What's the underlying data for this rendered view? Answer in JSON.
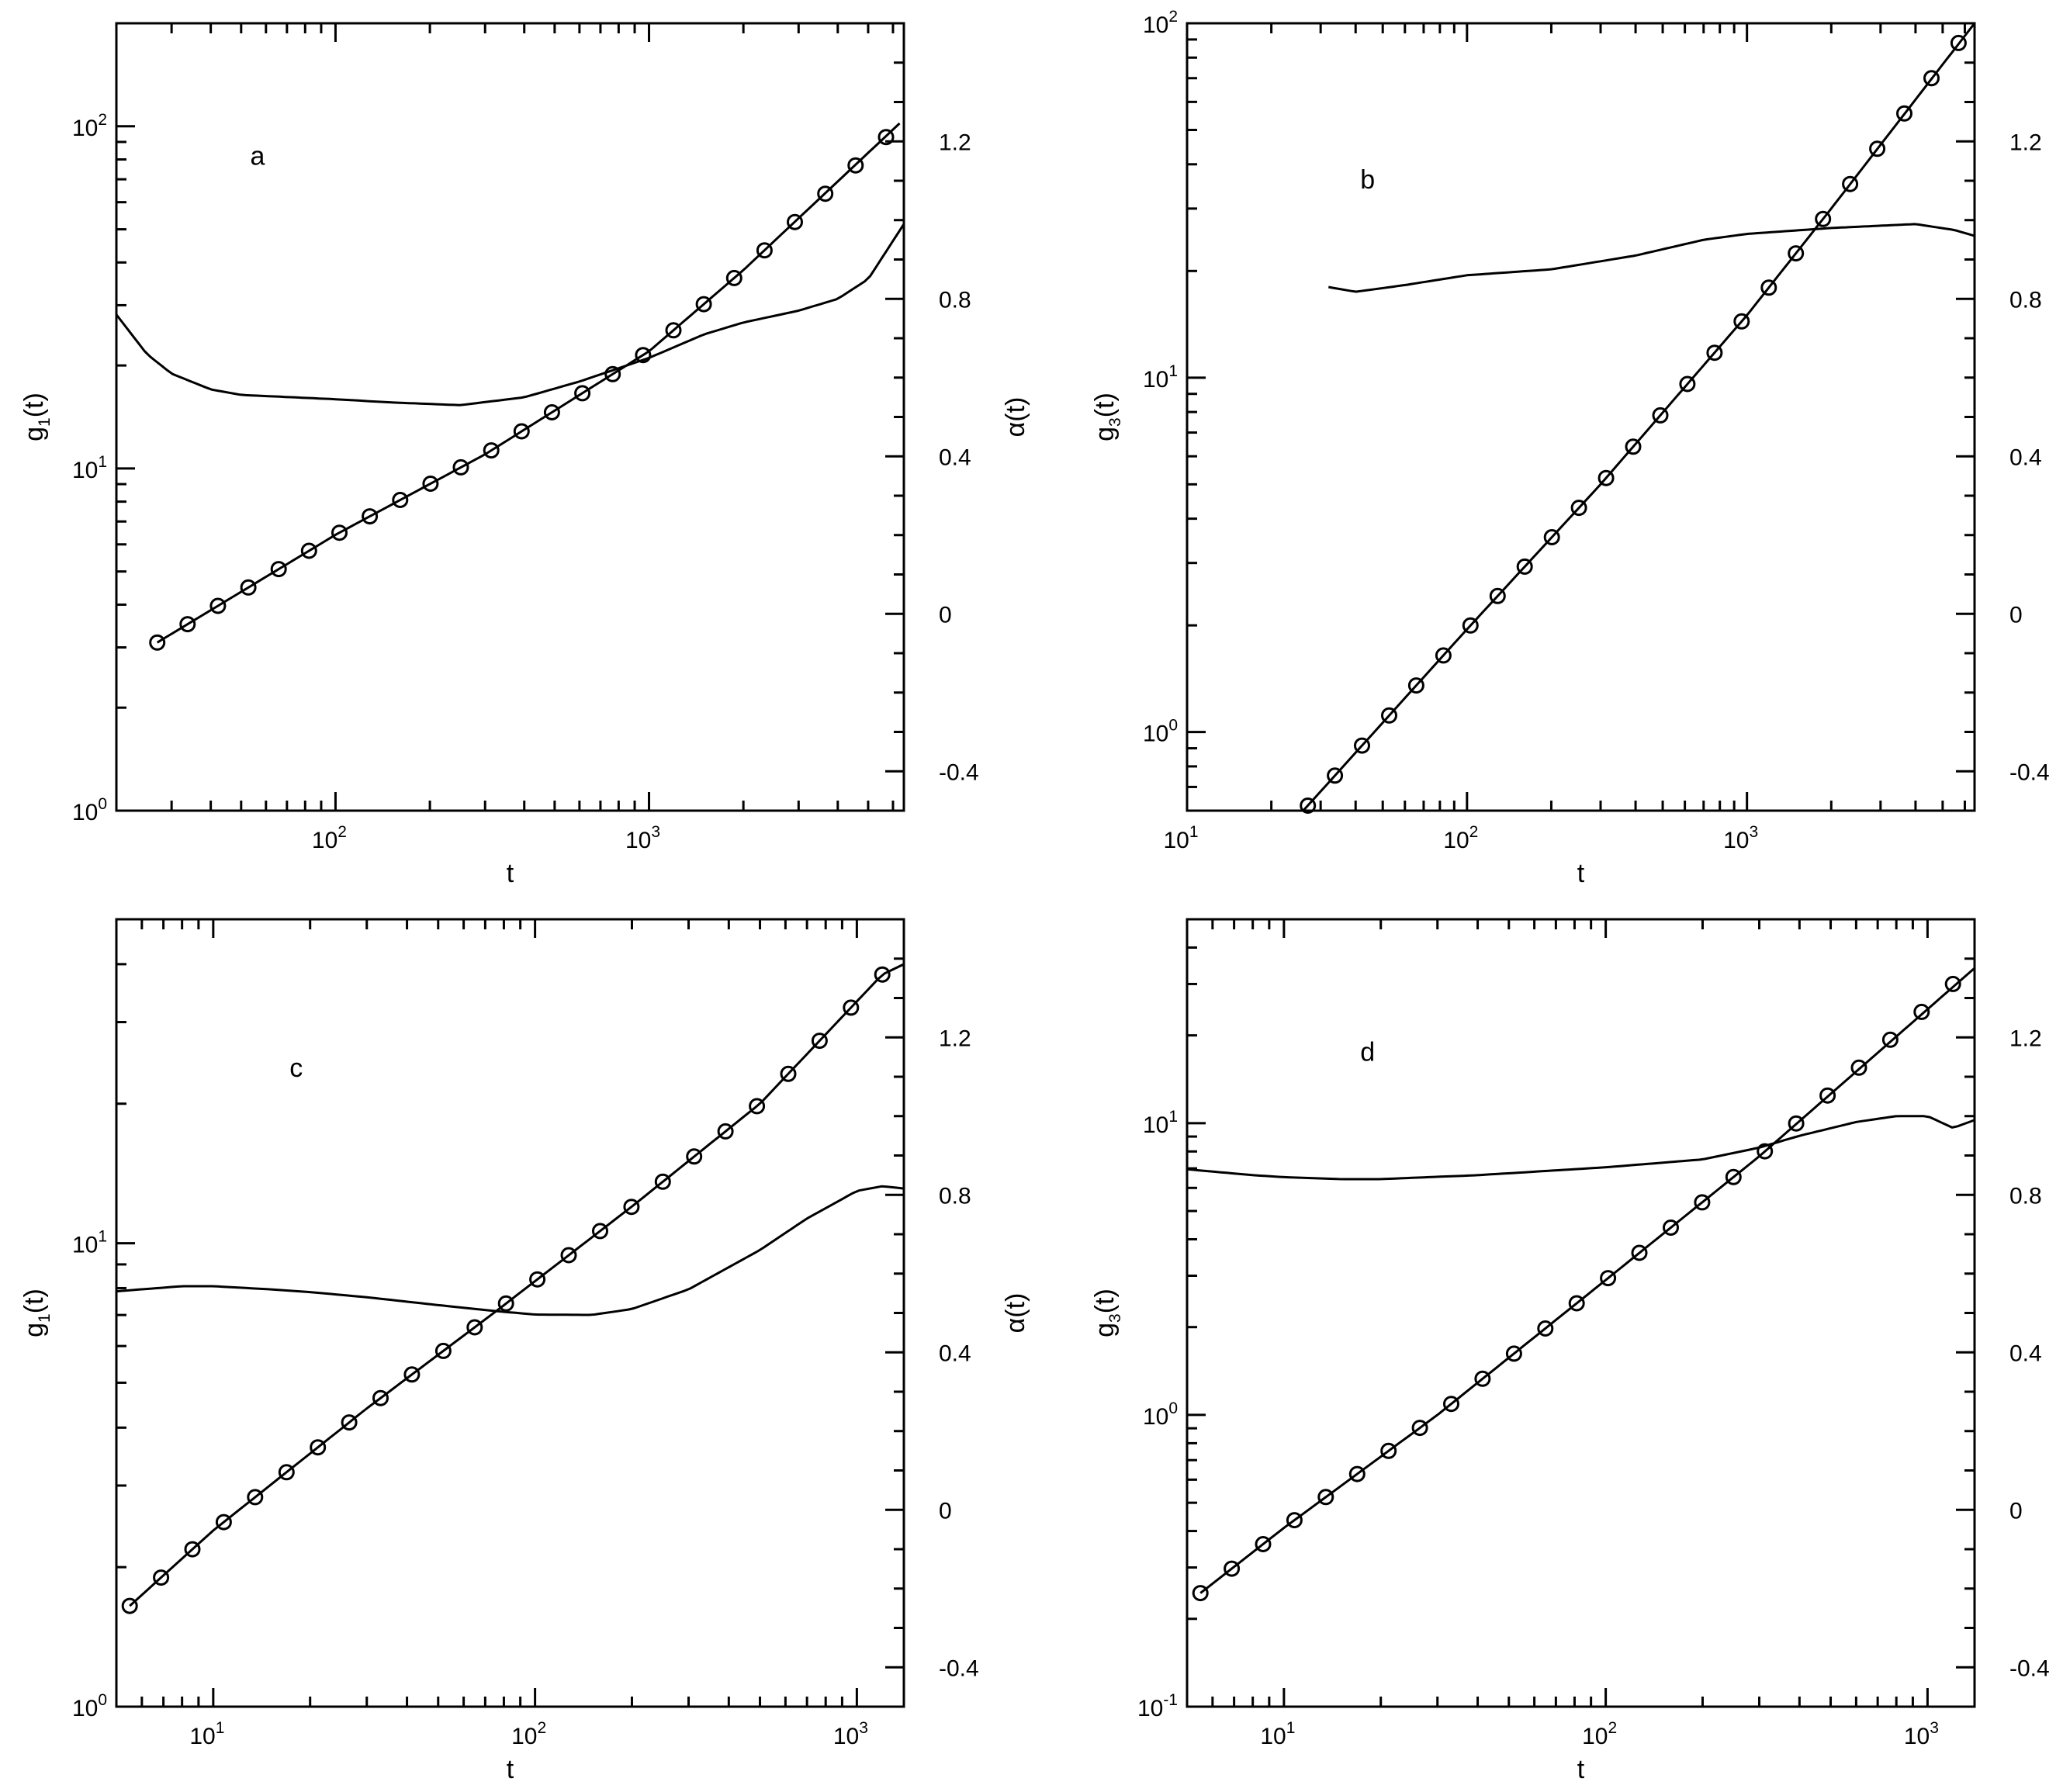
{
  "chart_data": [
    {
      "type": "line",
      "panel_label": "a",
      "xlabel": "t",
      "ylabel_left": {
        "base": "g",
        "sub": "1",
        "rest": "(t)"
      },
      "ylabel_right": "α(t)",
      "x_scale": "log",
      "y_left_scale": "log",
      "xlim": [
        20,
        6500
      ],
      "ylim_left": [
        1,
        200
      ],
      "ylim_right": [
        -0.5,
        1.5
      ],
      "x_ticks": [
        {
          "base": "10",
          "exp": "2",
          "value": 100
        },
        {
          "base": "10",
          "exp": "3",
          "value": 1000
        }
      ],
      "y_left_ticks": [
        {
          "base": "10",
          "exp": "0",
          "value": 1
        },
        {
          "base": "10",
          "exp": "1",
          "value": 10
        },
        {
          "base": "10",
          "exp": "2",
          "value": 100
        }
      ],
      "y_right_ticks": [
        "-0.4",
        "0",
        "0.4",
        "0.8",
        "1.2"
      ],
      "grid": false,
      "series": [
        {
          "role": "g(t) data",
          "axis": "left",
          "style": "markers",
          "x_start": 27,
          "x_end": 5700,
          "y_points": [
            [
              27,
              3.1
            ],
            [
              100,
              6.4
            ],
            [
              300,
              11
            ],
            [
              1000,
              22
            ],
            [
              2000,
              38
            ],
            [
              5700,
              93
            ]
          ]
        },
        {
          "role": "g(t) fit",
          "axis": "left",
          "style": "line",
          "x_start": 27,
          "x_end": 6300,
          "y_points": [
            [
              27,
              3.1
            ],
            [
              100,
              6.4
            ],
            [
              300,
              11
            ],
            [
              1000,
              22
            ],
            [
              2000,
              38
            ],
            [
              6300,
              102
            ]
          ]
        },
        {
          "role": "alpha(t)",
          "axis": "right",
          "style": "line",
          "points": [
            [
              20,
              0.76
            ],
            [
              25,
              0.66
            ],
            [
              30,
              0.61
            ],
            [
              40,
              0.57
            ],
            [
              50,
              0.556
            ],
            [
              100,
              0.545
            ],
            [
              150,
              0.537
            ],
            [
              250,
              0.53
            ],
            [
              400,
              0.55
            ],
            [
              600,
              0.59
            ],
            [
              1000,
              0.65
            ],
            [
              1500,
              0.71
            ],
            [
              2000,
              0.74
            ],
            [
              3000,
              0.77
            ],
            [
              4000,
              0.8
            ],
            [
              5000,
              0.85
            ],
            [
              6500,
              0.99
            ]
          ]
        }
      ]
    },
    {
      "type": "line",
      "panel_label": "b",
      "xlabel": "t",
      "ylabel_left": {
        "base": "g",
        "sub": "3",
        "rest": "(t)"
      },
      "ylabel_right": "α(t)",
      "x_scale": "log",
      "y_left_scale": "log",
      "xlim": [
        10,
        6500
      ],
      "ylim_left": [
        0.6,
        100
      ],
      "ylim_right": [
        -0.5,
        1.5
      ],
      "x_ticks": [
        {
          "base": "10",
          "exp": "1",
          "value": 10
        },
        {
          "base": "10",
          "exp": "2",
          "value": 100
        },
        {
          "base": "10",
          "exp": "3",
          "value": 1000
        }
      ],
      "y_left_ticks": [
        {
          "base": "10",
          "exp": "0",
          "value": 1
        },
        {
          "base": "10",
          "exp": "1",
          "value": 10
        },
        {
          "base": "10",
          "exp": "2",
          "value": 100
        }
      ],
      "y_right_ticks": [
        "-0.4",
        "0",
        "0.4",
        "0.8",
        "1.2"
      ],
      "grid": false,
      "series": [
        {
          "role": "g(t) data",
          "axis": "left",
          "style": "markers",
          "x_start": 27,
          "x_end": 5700,
          "y_points": [
            [
              27,
              0.62
            ],
            [
              100,
              1.95
            ],
            [
              300,
              5.0
            ],
            [
              1000,
              15
            ],
            [
              2000,
              30
            ],
            [
              5700,
              88
            ]
          ]
        },
        {
          "role": "g(t) fit",
          "axis": "left",
          "style": "line",
          "x_start": 26,
          "x_end": 6500,
          "y_points": [
            [
              26,
              0.6
            ],
            [
              100,
              1.95
            ],
            [
              300,
              5.0
            ],
            [
              1000,
              15
            ],
            [
              2000,
              30
            ],
            [
              6500,
              100
            ]
          ]
        },
        {
          "role": "alpha(t)",
          "axis": "right",
          "style": "line",
          "points": [
            [
              32,
              0.83
            ],
            [
              40,
              0.818
            ],
            [
              60,
              0.835
            ],
            [
              100,
              0.86
            ],
            [
              200,
              0.875
            ],
            [
              400,
              0.91
            ],
            [
              700,
              0.95
            ],
            [
              1000,
              0.965
            ],
            [
              2000,
              0.98
            ],
            [
              4000,
              0.99
            ],
            [
              5500,
              0.975
            ],
            [
              6500,
              0.96
            ]
          ]
        }
      ]
    },
    {
      "type": "line",
      "panel_label": "c",
      "xlabel": "t",
      "ylabel_left": {
        "base": "g",
        "sub": "1",
        "rest": "(t)"
      },
      "ylabel_right": "α(t)",
      "x_scale": "log",
      "y_left_scale": "log",
      "xlim": [
        5,
        1400
      ],
      "ylim_left": [
        1,
        50
      ],
      "ylim_right": [
        -0.5,
        1.5
      ],
      "x_ticks": [
        {
          "base": "10",
          "exp": "1",
          "value": 10
        },
        {
          "base": "10",
          "exp": "2",
          "value": 100
        },
        {
          "base": "10",
          "exp": "3",
          "value": 1000
        }
      ],
      "y_left_ticks": [
        {
          "base": "10",
          "exp": "0",
          "value": 1
        },
        {
          "base": "10",
          "exp": "1",
          "value": 10
        }
      ],
      "y_right_ticks": [
        "-0.4",
        "0",
        "0.4",
        "0.8",
        "1.2"
      ],
      "grid": false,
      "series": [
        {
          "role": "g(t) data",
          "axis": "left",
          "style": "markers",
          "x_start": 5.5,
          "x_end": 1200,
          "y_points": [
            [
              5.5,
              1.65
            ],
            [
              10,
              2.4
            ],
            [
              30,
              4.4
            ],
            [
              75,
              7.1
            ],
            [
              200,
              12
            ],
            [
              500,
              20
            ],
            [
              1200,
              38
            ]
          ]
        },
        {
          "role": "g(t) fit",
          "axis": "left",
          "style": "line",
          "x_start": 5.5,
          "x_end": 1400,
          "y_points": [
            [
              5.5,
              1.65
            ],
            [
              10,
              2.4
            ],
            [
              30,
              4.4
            ],
            [
              75,
              7.1
            ],
            [
              200,
              12
            ],
            [
              500,
              20
            ],
            [
              1200,
              38
            ],
            [
              1400,
              40
            ]
          ]
        },
        {
          "role": "alpha(t)",
          "axis": "right",
          "style": "line",
          "points": [
            [
              5,
              0.555
            ],
            [
              6,
              0.56
            ],
            [
              8,
              0.568
            ],
            [
              10,
              0.568
            ],
            [
              15,
              0.56
            ],
            [
              20,
              0.553
            ],
            [
              30,
              0.54
            ],
            [
              50,
              0.52
            ],
            [
              75,
              0.505
            ],
            [
              100,
              0.496
            ],
            [
              150,
              0.495
            ],
            [
              200,
              0.51
            ],
            [
              300,
              0.56
            ],
            [
              500,
              0.66
            ],
            [
              700,
              0.74
            ],
            [
              1000,
              0.81
            ],
            [
              1200,
              0.822
            ],
            [
              1400,
              0.816
            ]
          ]
        }
      ]
    },
    {
      "type": "line",
      "panel_label": "d",
      "xlabel": "t",
      "ylabel_left": {
        "base": "g",
        "sub": "3",
        "rest": "(t)"
      },
      "ylabel_right": "α(t)",
      "x_scale": "log",
      "y_left_scale": "log",
      "xlim": [
        5,
        1400
      ],
      "ylim_left": [
        0.1,
        50
      ],
      "ylim_right": [
        -0.5,
        1.5
      ],
      "x_ticks": [
        {
          "base": "10",
          "exp": "1",
          "value": 10
        },
        {
          "base": "10",
          "exp": "2",
          "value": 100
        },
        {
          "base": "10",
          "exp": "3",
          "value": 1000
        }
      ],
      "y_left_ticks": [
        {
          "base": "10",
          "exp": "-1",
          "value": 0.1
        },
        {
          "base": "10",
          "exp": "0",
          "value": 1
        },
        {
          "base": "10",
          "exp": "1",
          "value": 10
        }
      ],
      "y_right_ticks": [
        "-0.4",
        "0",
        "0.4",
        "0.8",
        "1.2"
      ],
      "grid": false,
      "series": [
        {
          "role": "g(t) data",
          "axis": "left",
          "style": "markers",
          "x_start": 5.5,
          "x_end": 1200,
          "y_points": [
            [
              5.5,
              0.245
            ],
            [
              10,
              0.41
            ],
            [
              30,
              1.0
            ],
            [
              100,
              2.9
            ],
            [
              300,
              7.7
            ],
            [
              1200,
              30
            ]
          ]
        },
        {
          "role": "g(t) fit",
          "axis": "left",
          "style": "line",
          "x_start": 5.5,
          "x_end": 1400,
          "y_points": [
            [
              5.5,
              0.245
            ],
            [
              10,
              0.41
            ],
            [
              30,
              1.0
            ],
            [
              100,
              2.9
            ],
            [
              300,
              7.7
            ],
            [
              1400,
              34
            ]
          ]
        },
        {
          "role": "alpha(t)",
          "axis": "right",
          "style": "line",
          "points": [
            [
              5,
              0.865
            ],
            [
              8,
              0.85
            ],
            [
              10,
              0.845
            ],
            [
              15,
              0.84
            ],
            [
              20,
              0.84
            ],
            [
              40,
              0.85
            ],
            [
              100,
              0.87
            ],
            [
              200,
              0.89
            ],
            [
              300,
              0.92
            ],
            [
              400,
              0.95
            ],
            [
              600,
              0.985
            ],
            [
              800,
              1.0
            ],
            [
              1000,
              1.0
            ],
            [
              1200,
              0.97
            ],
            [
              1400,
              0.99
            ]
          ]
        }
      ]
    }
  ]
}
